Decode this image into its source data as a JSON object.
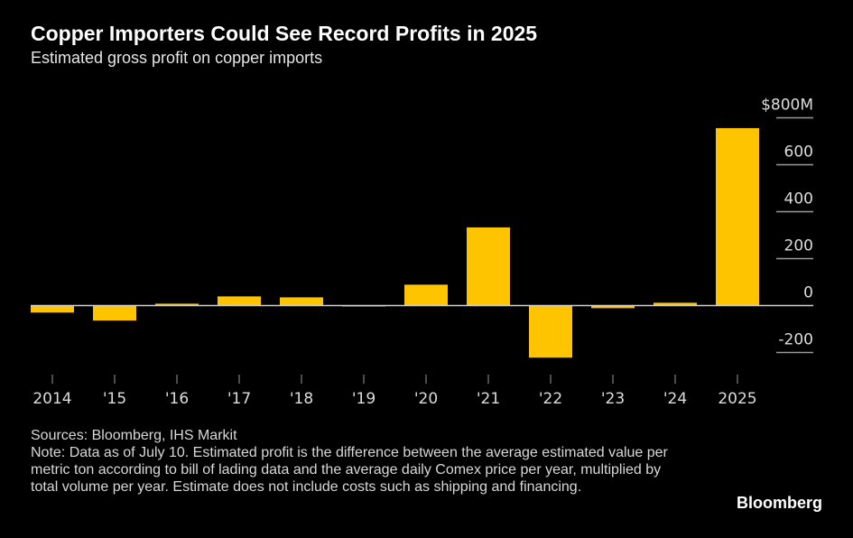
{
  "title": "Copper Importers Could See Record Profits in 2025",
  "subtitle": "Estimated gross profit on copper imports",
  "chart_data": {
    "type": "bar",
    "title": "Copper Importers Could See Record Profits in 2025",
    "subtitle": "Estimated gross profit on copper imports",
    "categories": [
      "2014",
      "'15",
      "'16",
      "'17",
      "'18",
      "'19",
      "'20",
      "'21",
      "'22",
      "'23",
      "'24",
      "2025"
    ],
    "values": [
      -30,
      -64,
      8,
      39,
      35,
      -2,
      89,
      333,
      -222,
      -11,
      12,
      756
    ],
    "unit": "$M",
    "ylim": [
      -200,
      800
    ],
    "yticks": [
      {
        "v": 800,
        "label": "$800M"
      },
      {
        "v": 600,
        "label": "600"
      },
      {
        "v": 400,
        "label": "400"
      },
      {
        "v": 200,
        "label": "200"
      },
      {
        "v": 0,
        "label": "0"
      },
      {
        "v": -200,
        "label": "-200"
      }
    ],
    "bar_color": "#ffc400"
  },
  "footer": {
    "sources": "Sources: Bloomberg, IHS Markit",
    "note": "Note: Data as of July 10. Estimated profit is the difference between the average estimated value per metric ton according to bill of lading data and the average daily Comex price per year, multiplied by total volume per year. Estimate does not include costs such as shipping and financing."
  },
  "logo": "Bloomberg"
}
